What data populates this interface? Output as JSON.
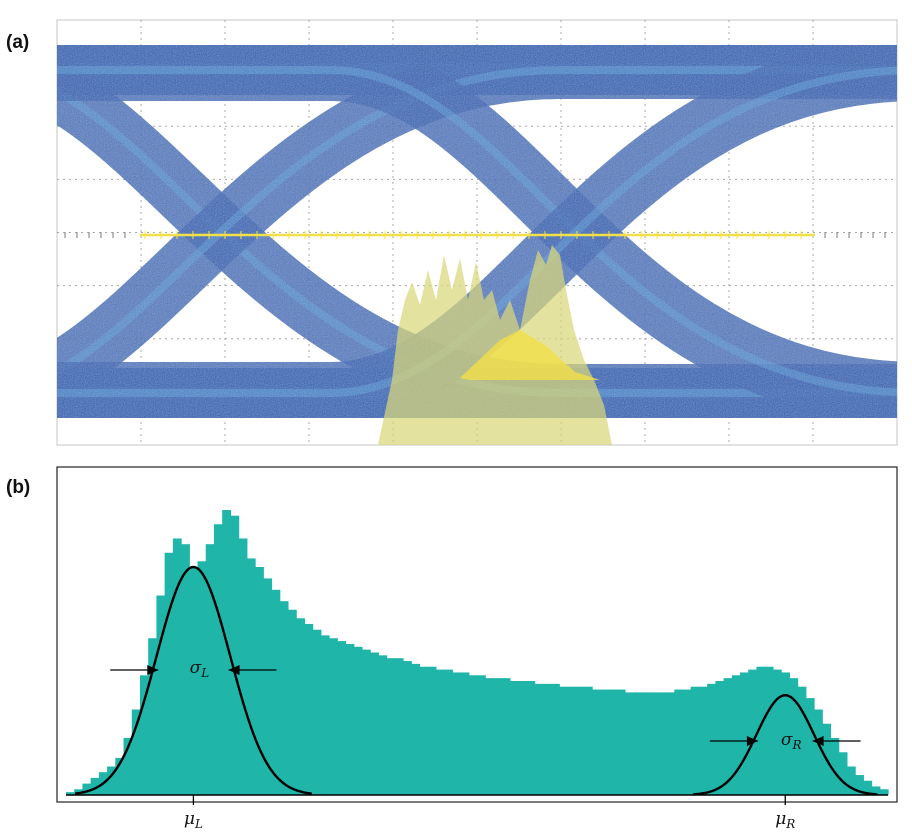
{
  "panels": {
    "a_label": "(a)",
    "b_label": "(b)"
  },
  "colors": {
    "eye_trace": "#1f63b8",
    "eye_trace_dense": "#2a7bd0",
    "eye_trace_light": "#5aa6e0",
    "crossing_line": "#f2e04a",
    "jitter_histogram": "#d9d77a",
    "histogram_fill": "#1fb5a8",
    "fit_curve": "#000000",
    "grid": "#a8a8a8"
  },
  "annotations": {
    "sigma_left": {
      "symbol": "σ",
      "subscript": "L"
    },
    "sigma_right": {
      "symbol": "σ",
      "subscript": "R"
    },
    "mu_left": {
      "symbol": "μ",
      "subscript": "L"
    },
    "mu_right": {
      "symbol": "μ",
      "subscript": "R"
    }
  },
  "chart_data": [
    {
      "type": "eye-diagram",
      "grid": true,
      "grid_divisions": {
        "x": 10,
        "y": 8
      },
      "overlays": [
        "horizontal crossing-level line",
        "jitter histogram at crossing"
      ]
    },
    {
      "type": "bar",
      "grid": false,
      "axes_labels": {
        "xlabel": "",
        "ylabel": ""
      },
      "x_range": [
        0,
        1
      ],
      "y_range": [
        0,
        1
      ],
      "bin_count": 100,
      "values": [
        0.01,
        0.02,
        0.04,
        0.06,
        0.08,
        0.1,
        0.13,
        0.2,
        0.3,
        0.42,
        0.55,
        0.7,
        0.85,
        0.9,
        0.88,
        0.8,
        0.82,
        0.88,
        0.95,
        1.0,
        0.98,
        0.9,
        0.83,
        0.8,
        0.76,
        0.72,
        0.68,
        0.65,
        0.62,
        0.6,
        0.58,
        0.56,
        0.55,
        0.54,
        0.53,
        0.52,
        0.51,
        0.5,
        0.49,
        0.48,
        0.48,
        0.47,
        0.46,
        0.45,
        0.45,
        0.44,
        0.44,
        0.43,
        0.43,
        0.42,
        0.42,
        0.41,
        0.41,
        0.41,
        0.4,
        0.4,
        0.4,
        0.39,
        0.39,
        0.39,
        0.38,
        0.38,
        0.38,
        0.38,
        0.37,
        0.37,
        0.37,
        0.37,
        0.36,
        0.36,
        0.36,
        0.36,
        0.36,
        0.36,
        0.37,
        0.37,
        0.38,
        0.38,
        0.39,
        0.4,
        0.41,
        0.42,
        0.43,
        0.44,
        0.45,
        0.45,
        0.44,
        0.43,
        0.41,
        0.38,
        0.34,
        0.3,
        0.25,
        0.2,
        0.15,
        0.1,
        0.07,
        0.05,
        0.03,
        0.02
      ],
      "fits": [
        {
          "name": "left-gaussian",
          "mu": 0.155,
          "sigma": 0.045,
          "peak": 0.8
        },
        {
          "name": "right-gaussian",
          "mu": 0.875,
          "sigma": 0.035,
          "peak": 0.35
        }
      ]
    }
  ]
}
